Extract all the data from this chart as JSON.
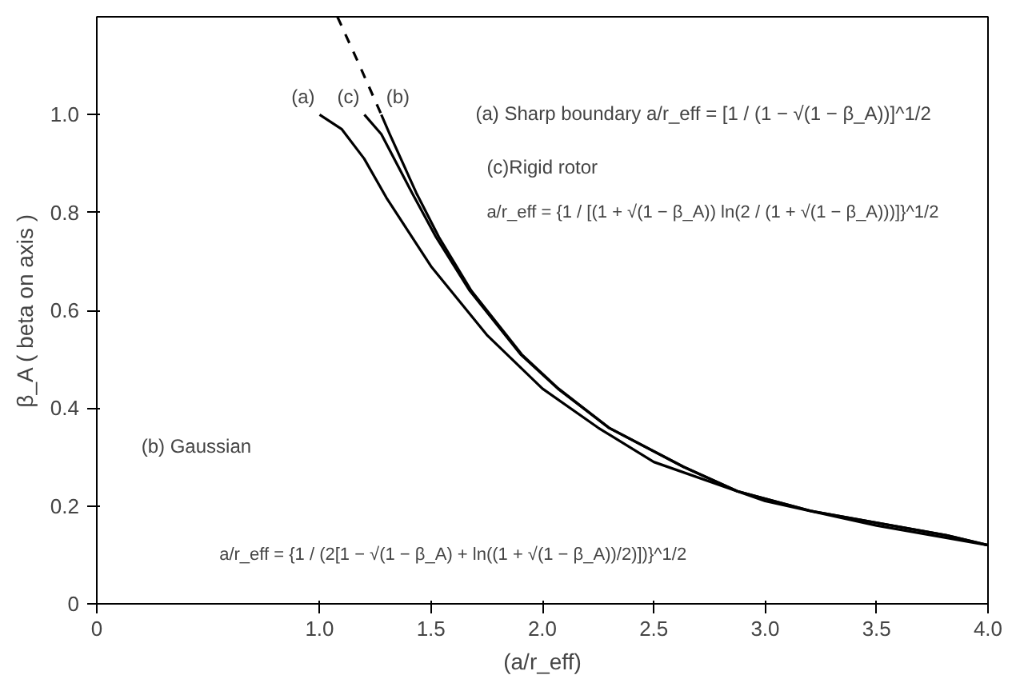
{
  "chart_data": {
    "type": "line",
    "xlabel": "(a/r_eff)",
    "ylabel": "β_A ( beta on axis )",
    "xlim": [
      0,
      4
    ],
    "ylim": [
      0,
      1.2
    ],
    "xticks": [
      0,
      {
        "value": 1,
        "label": "1.0"
      },
      1.5,
      {
        "value": 2,
        "label": "2.0"
      },
      2.5,
      {
        "value": 3,
        "label": "3.0"
      },
      3.5,
      {
        "value": 4,
        "label": "4.0"
      }
    ],
    "yticks": [
      0,
      0.2,
      0.4,
      0.6,
      0.8,
      {
        "value": 1,
        "label": "1.0"
      }
    ],
    "grid": false,
    "line_style": "solid",
    "series": [
      {
        "name": "(a)",
        "color": "#000000",
        "x": [
          1.0,
          1.1,
          1.2,
          1.3,
          1.4,
          1.5,
          1.75,
          2.0,
          2.25,
          2.5,
          3.0,
          3.5,
          4.0
        ],
        "values": [
          1.0,
          0.97,
          0.91,
          0.83,
          0.76,
          0.69,
          0.55,
          0.44,
          0.36,
          0.29,
          0.21,
          0.16,
          0.12
        ]
      },
      {
        "name": "(c)",
        "color": "#000000",
        "x": [
          1.201,
          1.277,
          1.415,
          1.522,
          1.674,
          1.902,
          2.069,
          2.297,
          2.633,
          2.875,
          3.203,
          3.814,
          4.0
        ],
        "values": [
          1.0,
          0.96,
          0.84,
          0.75,
          0.64,
          0.51,
          0.44,
          0.36,
          0.28,
          0.23,
          0.19,
          0.14,
          0.12
        ]
      },
      {
        "name": "(b)",
        "color": "#000000",
        "x": [
          1.277,
          1.315,
          1.434,
          1.535,
          1.681,
          1.907,
          2.072,
          2.299,
          2.634,
          2.876,
          3.204,
          3.814,
          4.0
        ],
        "values": [
          1.0,
          0.96,
          0.84,
          0.75,
          0.64,
          0.51,
          0.44,
          0.36,
          0.28,
          0.23,
          0.19,
          0.14,
          0.12
        ]
      },
      {
        "color": "#000000",
        "line_style": "dashed",
        "x": [
          1.08,
          1.18,
          1.277
        ],
        "values": [
          1.2,
          1.1,
          1.0
        ]
      }
    ],
    "annotations": [
      "(a) Sharp boundary  a/r_eff = [1 / (1 − √(1 − β_A))]^1/2",
      "(c)Rigid rotor",
      "a/r_eff = {1 / [(1 + √(1 − β_A)) ln(2 / (1 + √(1 − β_A)))]}^1/2",
      "(b) Gaussian",
      "a/r_eff = {1 / (2[1 − √(1 − β_A) + ln((1 + √(1 − β_A))/2)])}^1/2"
    ]
  }
}
